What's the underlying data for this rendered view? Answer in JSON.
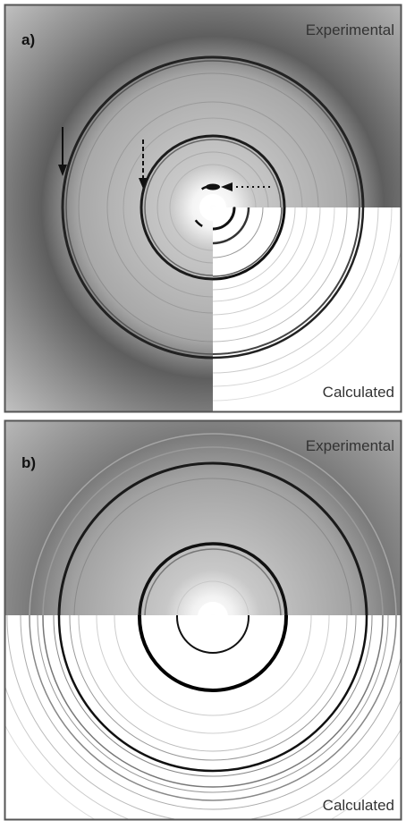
{
  "panels": [
    {
      "label": "a)",
      "top_label": "Experimental",
      "bottom_label": "Calculated"
    },
    {
      "label": "b)",
      "top_label": "Experimental",
      "bottom_label": "Calculated"
    }
  ]
}
